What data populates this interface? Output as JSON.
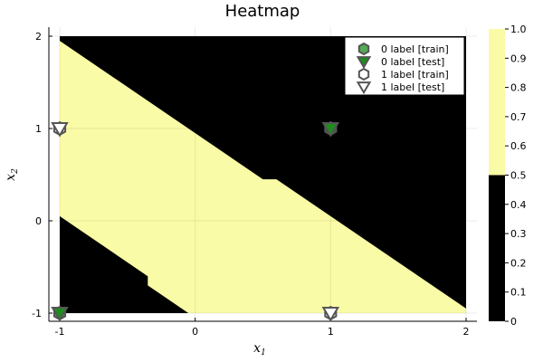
{
  "chart_data": {
    "type": "heatmap",
    "title": "Heatmap",
    "xlabel": "x",
    "xlabel_sub": "1",
    "ylabel": "x",
    "ylabel_sub": "2",
    "xlim": [
      -1,
      2
    ],
    "ylim": [
      -1,
      2
    ],
    "xticks": [
      -1,
      0,
      1,
      2
    ],
    "yticks": [
      -1,
      0,
      1,
      2
    ],
    "grid": true,
    "colors": {
      "class0_region": "#000000",
      "class1_region": "#fafba6",
      "class0_marker": "#1e8c1e",
      "class1_marker": "#ffffff",
      "marker_edge": "#555555"
    },
    "decision_region_class1": [
      [
        -1,
        1.95
      ],
      [
        0.5,
        0.45
      ],
      [
        0.6,
        0.45
      ],
      [
        2,
        -0.95
      ],
      [
        2,
        -1
      ],
      [
        -0.05,
        -1
      ],
      [
        -0.35,
        -0.7
      ],
      [
        -0.35,
        -0.6
      ],
      [
        -1,
        0.05
      ]
    ],
    "points": [
      {
        "label": 0,
        "split": "train",
        "x": 1,
        "y": 1
      },
      {
        "label": 0,
        "split": "test",
        "x": 1,
        "y": 1
      },
      {
        "label": 0,
        "split": "train",
        "x": -1,
        "y": -1
      },
      {
        "label": 0,
        "split": "test",
        "x": -1,
        "y": -1
      },
      {
        "label": 1,
        "split": "train",
        "x": -1,
        "y": 1
      },
      {
        "label": 1,
        "split": "test",
        "x": -1,
        "y": 1
      },
      {
        "label": 1,
        "split": "train",
        "x": 1,
        "y": -1
      },
      {
        "label": 1,
        "split": "test",
        "x": 1,
        "y": -1
      }
    ],
    "legend": {
      "placement": "top-right",
      "entries": [
        {
          "label": "0 label [train]",
          "marker": "hexagon",
          "class": 0
        },
        {
          "label": "0 label [test]",
          "marker": "triangle-down",
          "class": 0
        },
        {
          "label": "1 label [train]",
          "marker": "hexagon",
          "class": 1
        },
        {
          "label": "1 label [test]",
          "marker": "triangle-down",
          "class": 1
        }
      ]
    },
    "colorbar": {
      "range": [
        0,
        1
      ],
      "ticks": [
        "0",
        "0.1",
        "0.2",
        "0.3",
        "0.4",
        "0.5",
        "0.6",
        "0.7",
        "0.8",
        "0.9",
        "1.0"
      ],
      "bands": [
        {
          "from": 0,
          "to": 0.5,
          "color": "#000000"
        },
        {
          "from": 0.5,
          "to": 1.0,
          "color": "#fafba6"
        }
      ]
    }
  }
}
